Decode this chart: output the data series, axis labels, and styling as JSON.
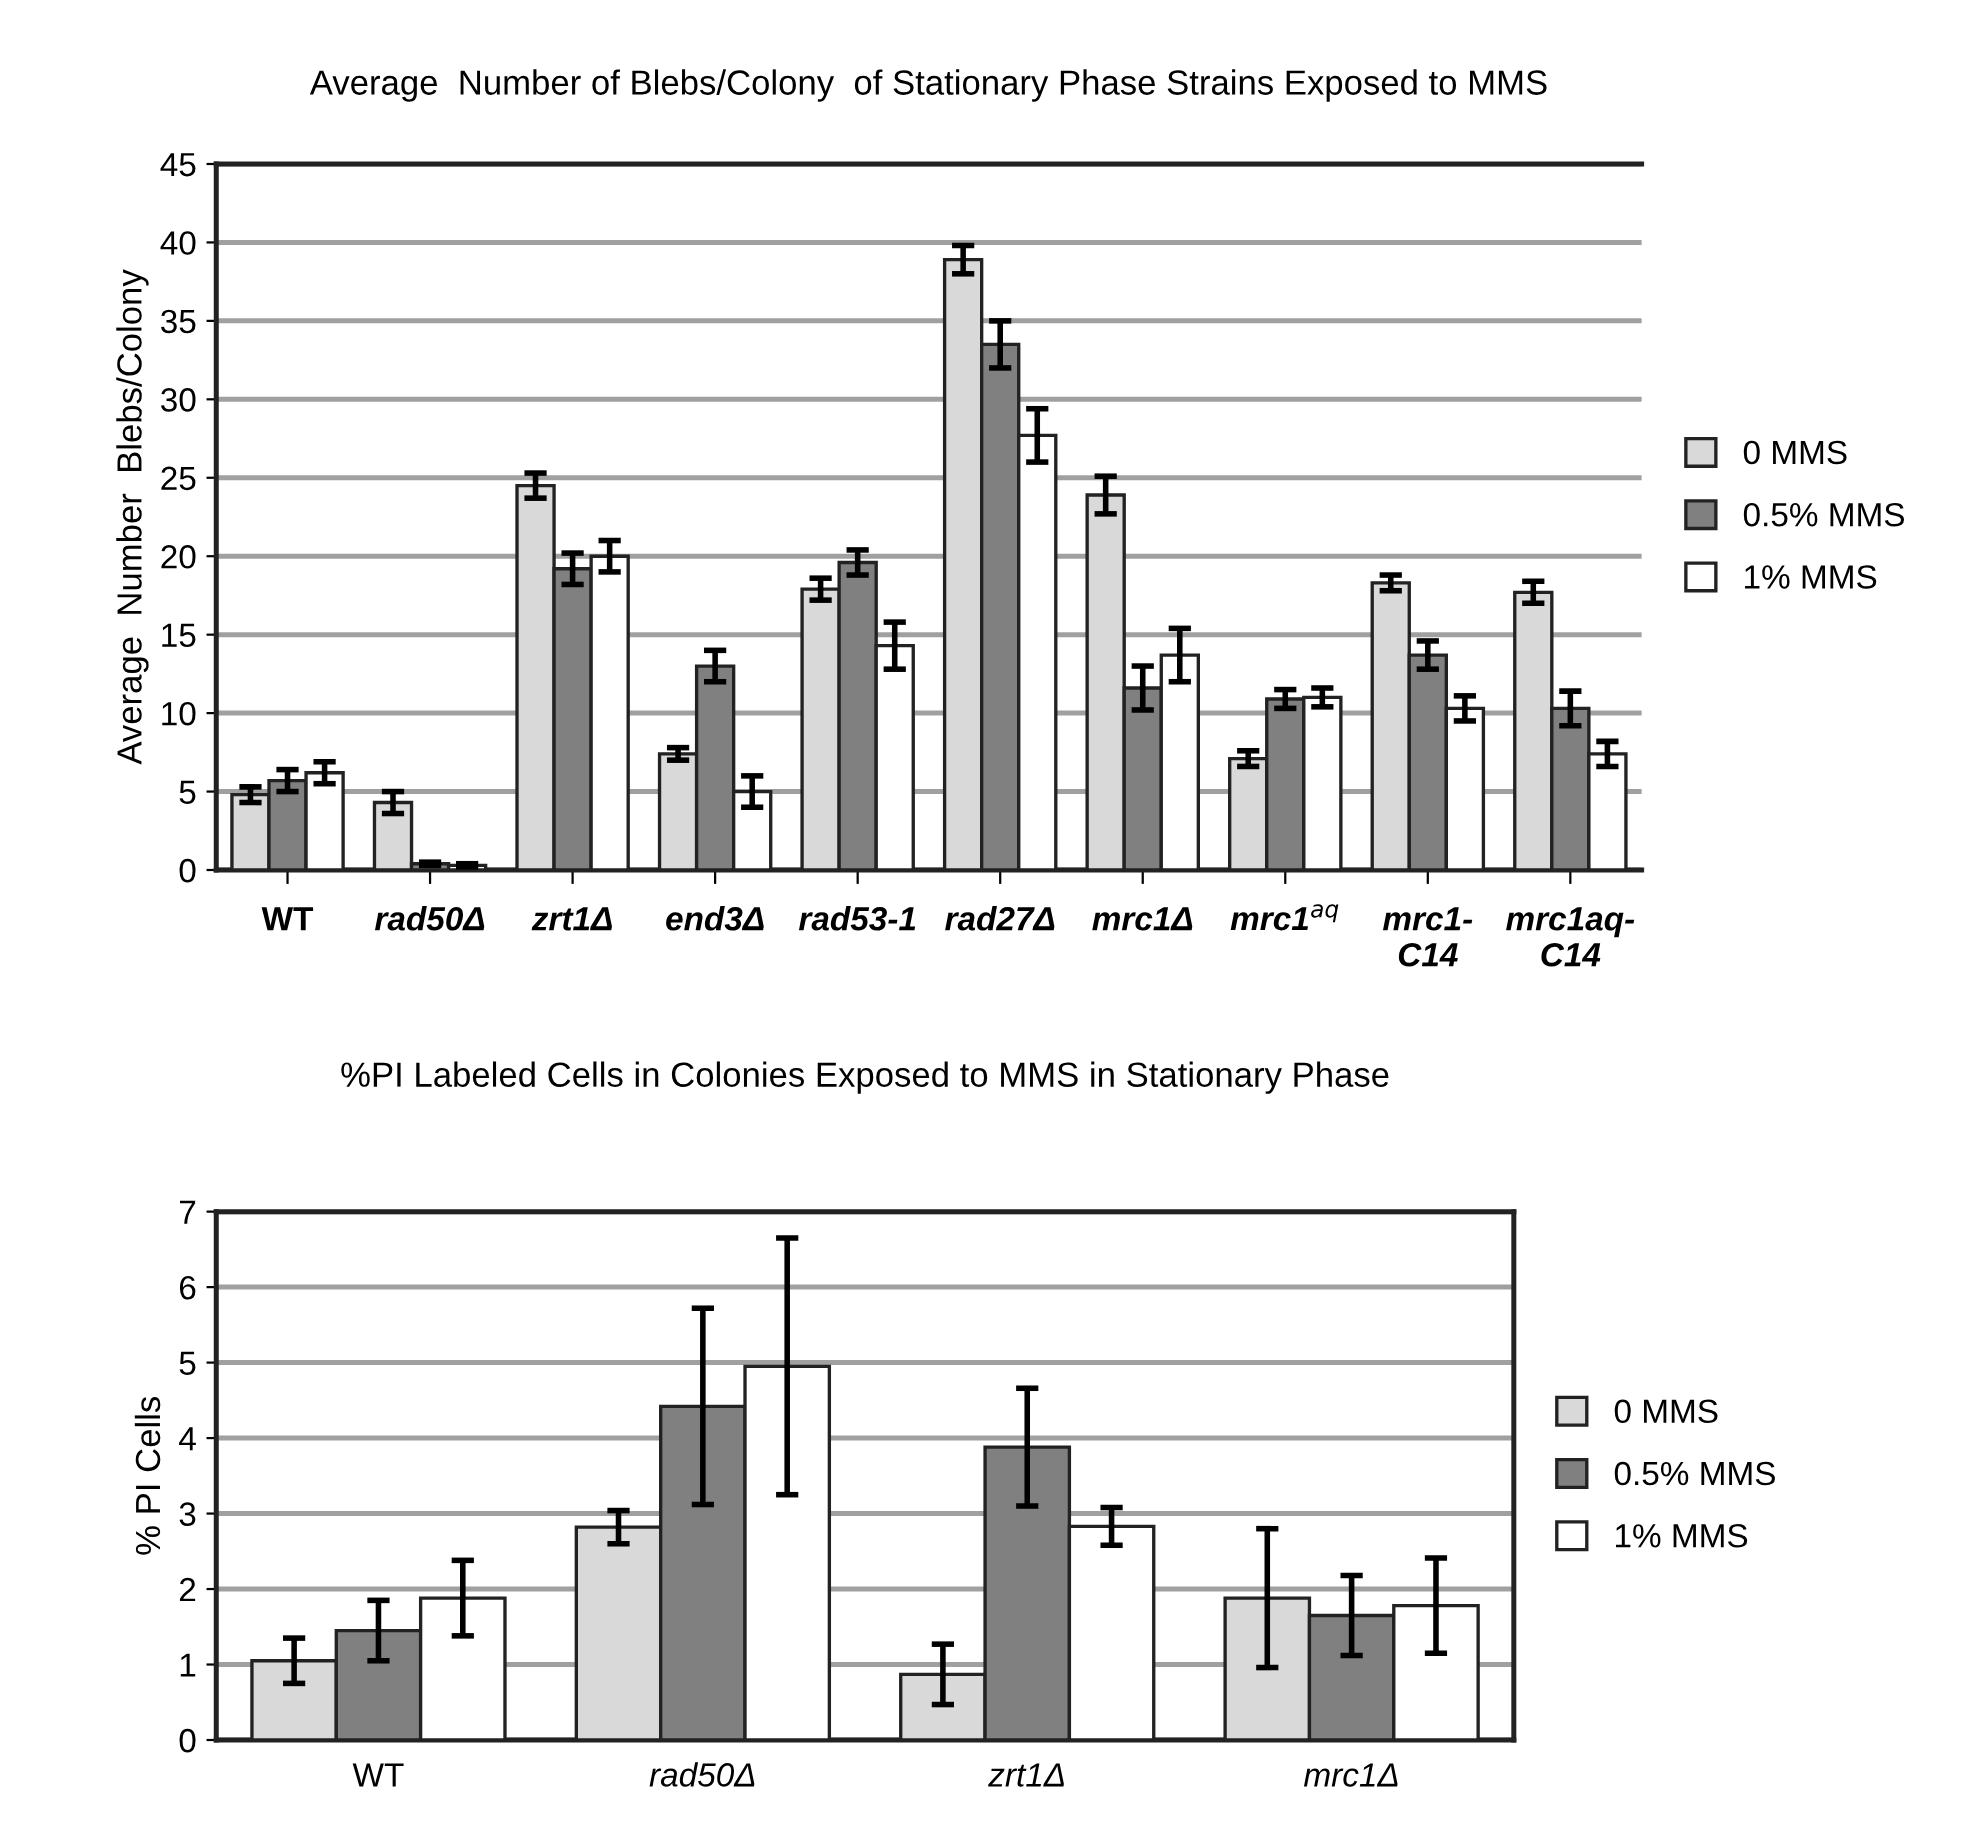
{
  "chart_data": [
    {
      "type": "bar",
      "title": "Average  Number of Blebs/Colony  of Stationary Phase Strains Exposed to MMS",
      "ylabel": "Average  Number  Blebs/Colony",
      "categories": [
        "WT",
        "rad50Δ",
        "zrt1Δ",
        "end3Δ",
        "rad53-1",
        "rad27Δ",
        "mrc1Δ",
        "mrc1$^{aq}$",
        "mrc1-\nC14",
        "mrc1aq-\nC14"
      ],
      "series": [
        {
          "name": "0 MMS",
          "color": "#d9d9d9",
          "values": [
            4.8,
            4.3,
            24.5,
            7.4,
            17.9,
            38.9,
            23.9,
            7.1,
            18.3,
            17.7
          ],
          "errors": [
            0.5,
            0.7,
            0.8,
            0.4,
            0.7,
            0.9,
            1.2,
            0.5,
            0.5,
            0.7
          ]
        },
        {
          "name": "0.5% MMS",
          "color": "#808080",
          "values": [
            5.7,
            0.4,
            19.2,
            13.0,
            19.6,
            33.5,
            11.6,
            10.9,
            13.7,
            10.3
          ],
          "errors": [
            0.7,
            0.1,
            1.0,
            1.0,
            0.8,
            1.5,
            1.4,
            0.6,
            0.9,
            1.1
          ]
        },
        {
          "name": "1% MMS",
          "color": "#ffffff",
          "values": [
            6.2,
            0.3,
            20.0,
            5.0,
            14.3,
            27.7,
            13.7,
            11.0,
            10.3,
            7.4
          ],
          "errors": [
            0.7,
            0.1,
            1.0,
            1.0,
            1.5,
            1.7,
            1.7,
            0.6,
            0.8,
            0.8
          ]
        }
      ],
      "ylim": [
        0,
        45
      ],
      "yticks": [
        0,
        5,
        10,
        15,
        20,
        25,
        30,
        35,
        40,
        45
      ],
      "grid": "y",
      "legend": "right"
    },
    {
      "type": "bar",
      "title": "%PI Labeled Cells in Colonies Exposed to MMS in Stationary Phase",
      "ylabel": "% PI Cells",
      "categories": [
        "WT",
        "rad50Δ",
        "zrt1Δ",
        "mrc1Δ"
      ],
      "series": [
        {
          "name": "0 MMS",
          "color": "#d9d9d9",
          "values": [
            1.05,
            2.82,
            0.87,
            1.88
          ],
          "errors": [
            0.3,
            0.22,
            0.4,
            0.92
          ]
        },
        {
          "name": "0.5% MMS",
          "color": "#808080",
          "values": [
            1.45,
            4.42,
            3.88,
            1.65
          ],
          "errors": [
            0.4,
            1.3,
            0.78,
            0.53
          ]
        },
        {
          "name": "1% MMS",
          "color": "#ffffff",
          "values": [
            1.88,
            4.95,
            2.83,
            1.78
          ],
          "errors": [
            0.5,
            1.7,
            0.25,
            0.63
          ]
        }
      ],
      "ylim": [
        0,
        7
      ],
      "yticks": [
        0,
        1,
        2,
        3,
        4,
        5,
        6,
        7
      ],
      "grid": "y",
      "legend": "right"
    }
  ]
}
